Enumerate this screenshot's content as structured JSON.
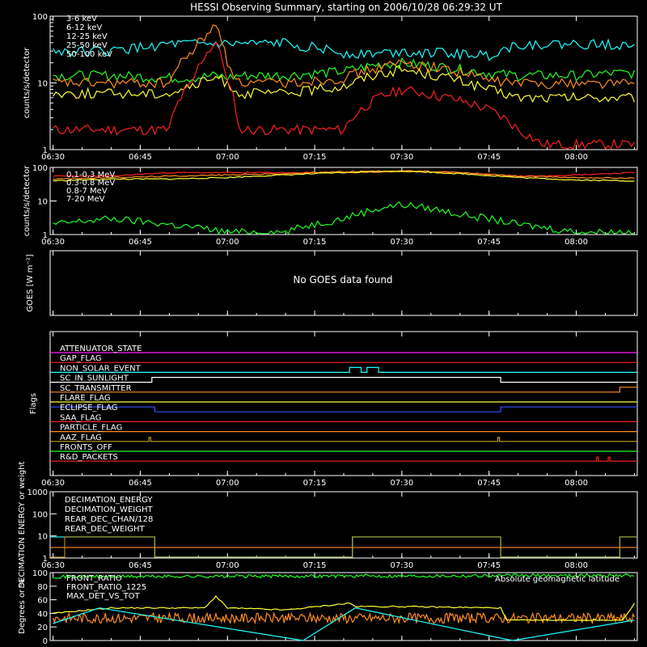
{
  "title": "HESSI Observing Summary, starting on 2006/10/28 06:29:32 UT",
  "time_ticks": [
    "06:30",
    "06:45",
    "07:00",
    "07:15",
    "07:30",
    "07:45",
    "08:00"
  ],
  "chart_data": [
    {
      "type": "line",
      "ylabel": "counts/s/detector",
      "yscale": "log",
      "ylim": [
        1,
        100
      ],
      "y_ticks": [
        "1",
        "10",
        "100"
      ],
      "x_minutes_after_0630": [
        0,
        10,
        20,
        24,
        28,
        30,
        32,
        36,
        40,
        50,
        56,
        60,
        68,
        75,
        80,
        84,
        90,
        96,
        100
      ],
      "series": [
        {
          "name": "3-6 keV",
          "color": "#ff2020",
          "values": [
            2,
            2,
            2,
            10,
            40,
            10,
            2,
            2,
            2,
            2,
            6,
            8,
            6,
            4,
            2,
            1.2,
            1.2,
            1.2,
            1.2
          ]
        },
        {
          "name": "6-12 keV",
          "color": "#ff8c20",
          "values": [
            10,
            10,
            10,
            30,
            70,
            20,
            10,
            10,
            10,
            12,
            17,
            20,
            16,
            11,
            10,
            10,
            10,
            10,
            10
          ]
        },
        {
          "name": "12-25 keV",
          "color": "#ffff30",
          "values": [
            7,
            7,
            7,
            9,
            12,
            10,
            7,
            7,
            7,
            9,
            14,
            16,
            12,
            8,
            6,
            6,
            6,
            6,
            6
          ]
        },
        {
          "name": "25-50 keV",
          "color": "#20ff20",
          "values": [
            13,
            13,
            12,
            12,
            13,
            12,
            13,
            13,
            13,
            15,
            19,
            20,
            17,
            14,
            13,
            13,
            13,
            14,
            14
          ]
        },
        {
          "name": "50-100 keV",
          "color": "#20ffff",
          "values": [
            30,
            30,
            38,
            38,
            38,
            38,
            38,
            38,
            40,
            28,
            28,
            30,
            28,
            26,
            38,
            38,
            38,
            38,
            38
          ]
        }
      ]
    },
    {
      "type": "line",
      "ylabel": "counts/s/detector",
      "yscale": "log",
      "ylim": [
        1,
        100
      ],
      "y_ticks": [
        "1",
        "10",
        "100"
      ],
      "x_minutes_after_0630": [
        0,
        10,
        20,
        30,
        40,
        50,
        60,
        70,
        80,
        90,
        100
      ],
      "series": [
        {
          "name": "0.1-0.3 MeV",
          "color": "#ff2020",
          "values": [
            55,
            55,
            70,
            70,
            70,
            70,
            75,
            70,
            55,
            60,
            70
          ]
        },
        {
          "name": "0.3-0.8 MeV",
          "color": "#ff8c20",
          "values": [
            45,
            50,
            55,
            60,
            65,
            75,
            80,
            70,
            55,
            50,
            48
          ]
        },
        {
          "name": "0.8-7 MeV",
          "color": "#ffff30",
          "values": [
            40,
            45,
            45,
            50,
            60,
            70,
            78,
            65,
            50,
            42,
            40
          ]
        },
        {
          "name": "7-20 MeV",
          "color": "#20ff20",
          "values": [
            2,
            3,
            2,
            1.2,
            1.2,
            3,
            8,
            4,
            2,
            1.2,
            1.2
          ]
        }
      ]
    },
    {
      "type": "line",
      "ylabel": "GOES [W m⁻²]",
      "message": "No GOES data found",
      "series": []
    },
    {
      "type": "line",
      "ylabel": "Flags",
      "x_minutes_after_0630": [
        0,
        100
      ],
      "series": [
        {
          "name": "ATTENUATOR_STATE",
          "color": "#ff20ff"
        },
        {
          "name": "GAP_FLAG",
          "color": "#ff2020"
        },
        {
          "name": "NON_SOLAR_EVENT",
          "color": "#20ffff"
        },
        {
          "name": "SC_IN_SUNLIGHT",
          "color": "#ffffff"
        },
        {
          "name": "SC_TRANSMITTER",
          "color": "#ff8c20"
        },
        {
          "name": "FLARE_FLAG",
          "color": "#ffff30"
        },
        {
          "name": "ECLIPSE_FLAG",
          "color": "#3050ff"
        },
        {
          "name": "SAA_FLAG",
          "color": "#ff2020"
        },
        {
          "name": "PARTICLE_FLAG",
          "color": "#ff8c20"
        },
        {
          "name": "AAZ_FLAG",
          "color": "#c0a020"
        },
        {
          "name": "FRONTS_OFF",
          "color": "#20ff20"
        },
        {
          "name": "R&D_PACKETS",
          "color": "#ff2020"
        }
      ]
    },
    {
      "type": "line",
      "ylabel": "DECIMATION ENERGY or weight",
      "yscale": "log",
      "ylim": [
        1,
        1000
      ],
      "y_ticks": [
        "1",
        "10",
        "100",
        "1000"
      ],
      "series": [
        {
          "name": "DECIMATION_ENERGY",
          "color": "#20ff20"
        },
        {
          "name": "DECIMATION_WEIGHT",
          "color": "#ff8c20"
        },
        {
          "name": "REAR_DEC_CHAN/128",
          "color": "#20ffff"
        },
        {
          "name": "REAR_DEC_WEIGHT",
          "color": "#ffff30"
        }
      ]
    },
    {
      "type": "line",
      "ylabel": "Degrees or %",
      "ylim": [
        0,
        100
      ],
      "y_ticks": [
        "0",
        "20",
        "40",
        "60",
        "80",
        "100"
      ],
      "series": [
        {
          "name": "FRONT_RATIO",
          "color": "#ffff30"
        },
        {
          "name": "FRONT_RATIO_1225",
          "color": "#20ff20"
        },
        {
          "name": "MAX_DET_VS_TOT",
          "color": "#ff8c20"
        },
        {
          "name": "Absolute geomagnetic latitude",
          "color": "#20ffff"
        }
      ]
    }
  ]
}
